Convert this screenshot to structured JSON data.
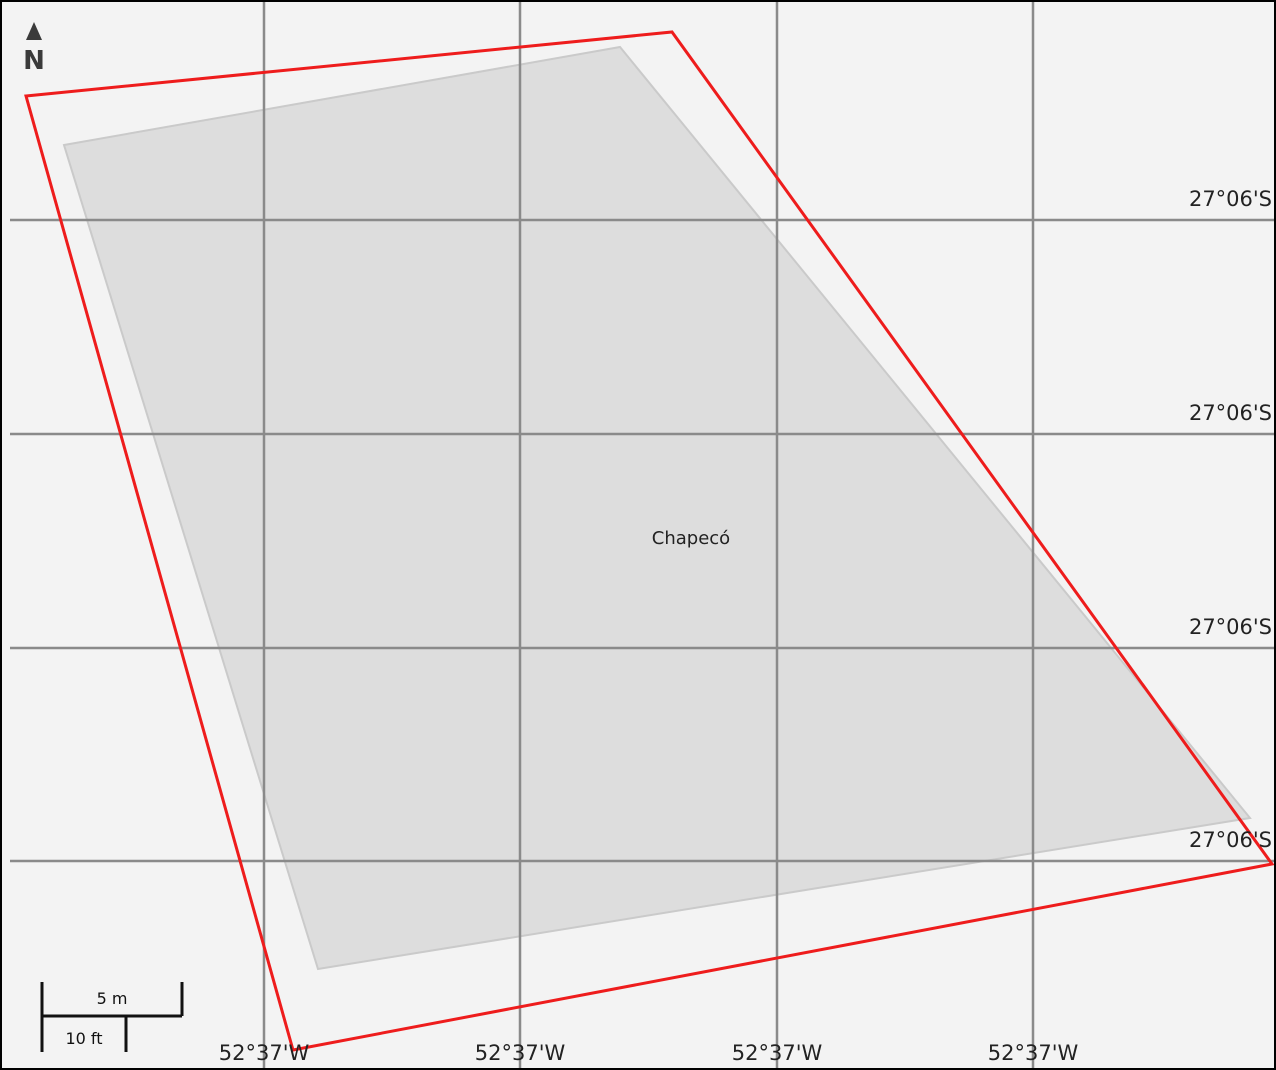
{
  "north_arrow": {
    "label": "N"
  },
  "place": {
    "name": "Chapecó"
  },
  "latitude_labels": [
    "27°06'S",
    "27°06'S",
    "27°06'S",
    "27°06'S"
  ],
  "longitude_labels": [
    "52°37'W",
    "52°37'W",
    "52°37'W",
    "52°37'W"
  ],
  "scale_bar": {
    "metric": "5 m",
    "imperial": "10 ft"
  },
  "colors": {
    "background": "#f3f3f3",
    "grid": "#8a8a8a",
    "parcel_fill": "#dcdcdc",
    "boundary": "#ee1c1c"
  }
}
